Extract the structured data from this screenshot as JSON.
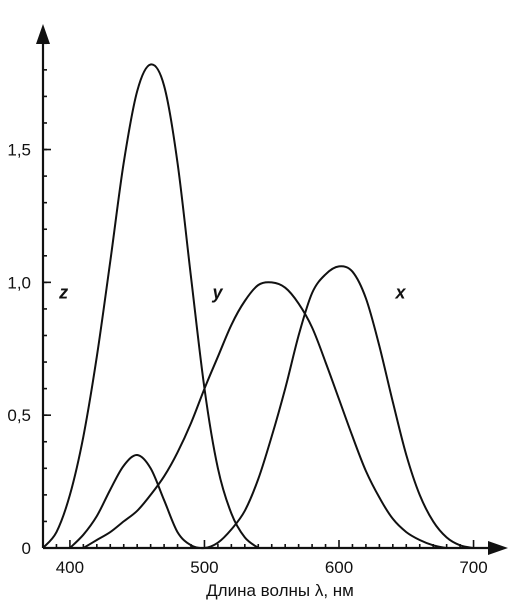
{
  "chart_data": {
    "type": "line",
    "xlabel": "Длина волны λ, нм",
    "ylabel": "",
    "xlim": [
      380,
      710
    ],
    "ylim": [
      0,
      1.95
    ],
    "x_ticks": [
      {
        "value": 400,
        "label": "400"
      },
      {
        "value": 500,
        "label": "500"
      },
      {
        "value": 600,
        "label": "600"
      },
      {
        "value": 700,
        "label": "700"
      }
    ],
    "y_ticks": [
      {
        "value": 0,
        "label": "0"
      },
      {
        "value": 0.5,
        "label": "0,5"
      },
      {
        "value": 1.0,
        "label": "1,0"
      },
      {
        "value": 1.5,
        "label": "1,5"
      }
    ],
    "series": [
      {
        "name": "z",
        "label_at": [
          392,
          1.0
        ],
        "points": [
          [
            380,
            0.0
          ],
          [
            390,
            0.06
          ],
          [
            400,
            0.2
          ],
          [
            410,
            0.42
          ],
          [
            420,
            0.72
          ],
          [
            430,
            1.08
          ],
          [
            440,
            1.45
          ],
          [
            450,
            1.72
          ],
          [
            460,
            1.82
          ],
          [
            470,
            1.74
          ],
          [
            480,
            1.45
          ],
          [
            490,
            1.02
          ],
          [
            500,
            0.6
          ],
          [
            510,
            0.3
          ],
          [
            520,
            0.13
          ],
          [
            530,
            0.04
          ],
          [
            540,
            0.0
          ]
        ]
      },
      {
        "name": "y",
        "label_at": [
          506,
          1.0
        ],
        "points": [
          [
            410,
            0.0
          ],
          [
            420,
            0.03
          ],
          [
            430,
            0.06
          ],
          [
            440,
            0.1
          ],
          [
            450,
            0.14
          ],
          [
            460,
            0.2
          ],
          [
            470,
            0.27
          ],
          [
            480,
            0.36
          ],
          [
            490,
            0.47
          ],
          [
            500,
            0.6
          ],
          [
            510,
            0.72
          ],
          [
            520,
            0.84
          ],
          [
            530,
            0.93
          ],
          [
            540,
            0.99
          ],
          [
            550,
            1.0
          ],
          [
            560,
            0.98
          ],
          [
            570,
            0.92
          ],
          [
            580,
            0.83
          ],
          [
            590,
            0.7
          ],
          [
            600,
            0.56
          ],
          [
            610,
            0.42
          ],
          [
            620,
            0.29
          ],
          [
            630,
            0.19
          ],
          [
            640,
            0.11
          ],
          [
            650,
            0.06
          ],
          [
            660,
            0.03
          ],
          [
            670,
            0.01
          ],
          [
            680,
            0.0
          ]
        ]
      },
      {
        "name": "x",
        "label_at": [
          642,
          1.0
        ],
        "points": [
          [
            400,
            0.0
          ],
          [
            410,
            0.05
          ],
          [
            420,
            0.12
          ],
          [
            430,
            0.22
          ],
          [
            440,
            0.31
          ],
          [
            450,
            0.35
          ],
          [
            460,
            0.3
          ],
          [
            470,
            0.18
          ],
          [
            480,
            0.06
          ],
          [
            490,
            0.01
          ],
          [
            500,
            0.0
          ],
          [
            510,
            0.02
          ],
          [
            520,
            0.07
          ],
          [
            530,
            0.14
          ],
          [
            540,
            0.26
          ],
          [
            550,
            0.42
          ],
          [
            560,
            0.6
          ],
          [
            570,
            0.8
          ],
          [
            580,
            0.96
          ],
          [
            590,
            1.03
          ],
          [
            600,
            1.06
          ],
          [
            610,
            1.04
          ],
          [
            620,
            0.94
          ],
          [
            630,
            0.76
          ],
          [
            640,
            0.55
          ],
          [
            650,
            0.35
          ],
          [
            660,
            0.2
          ],
          [
            670,
            0.1
          ],
          [
            680,
            0.04
          ],
          [
            690,
            0.01
          ],
          [
            700,
            0.0
          ]
        ]
      }
    ]
  }
}
